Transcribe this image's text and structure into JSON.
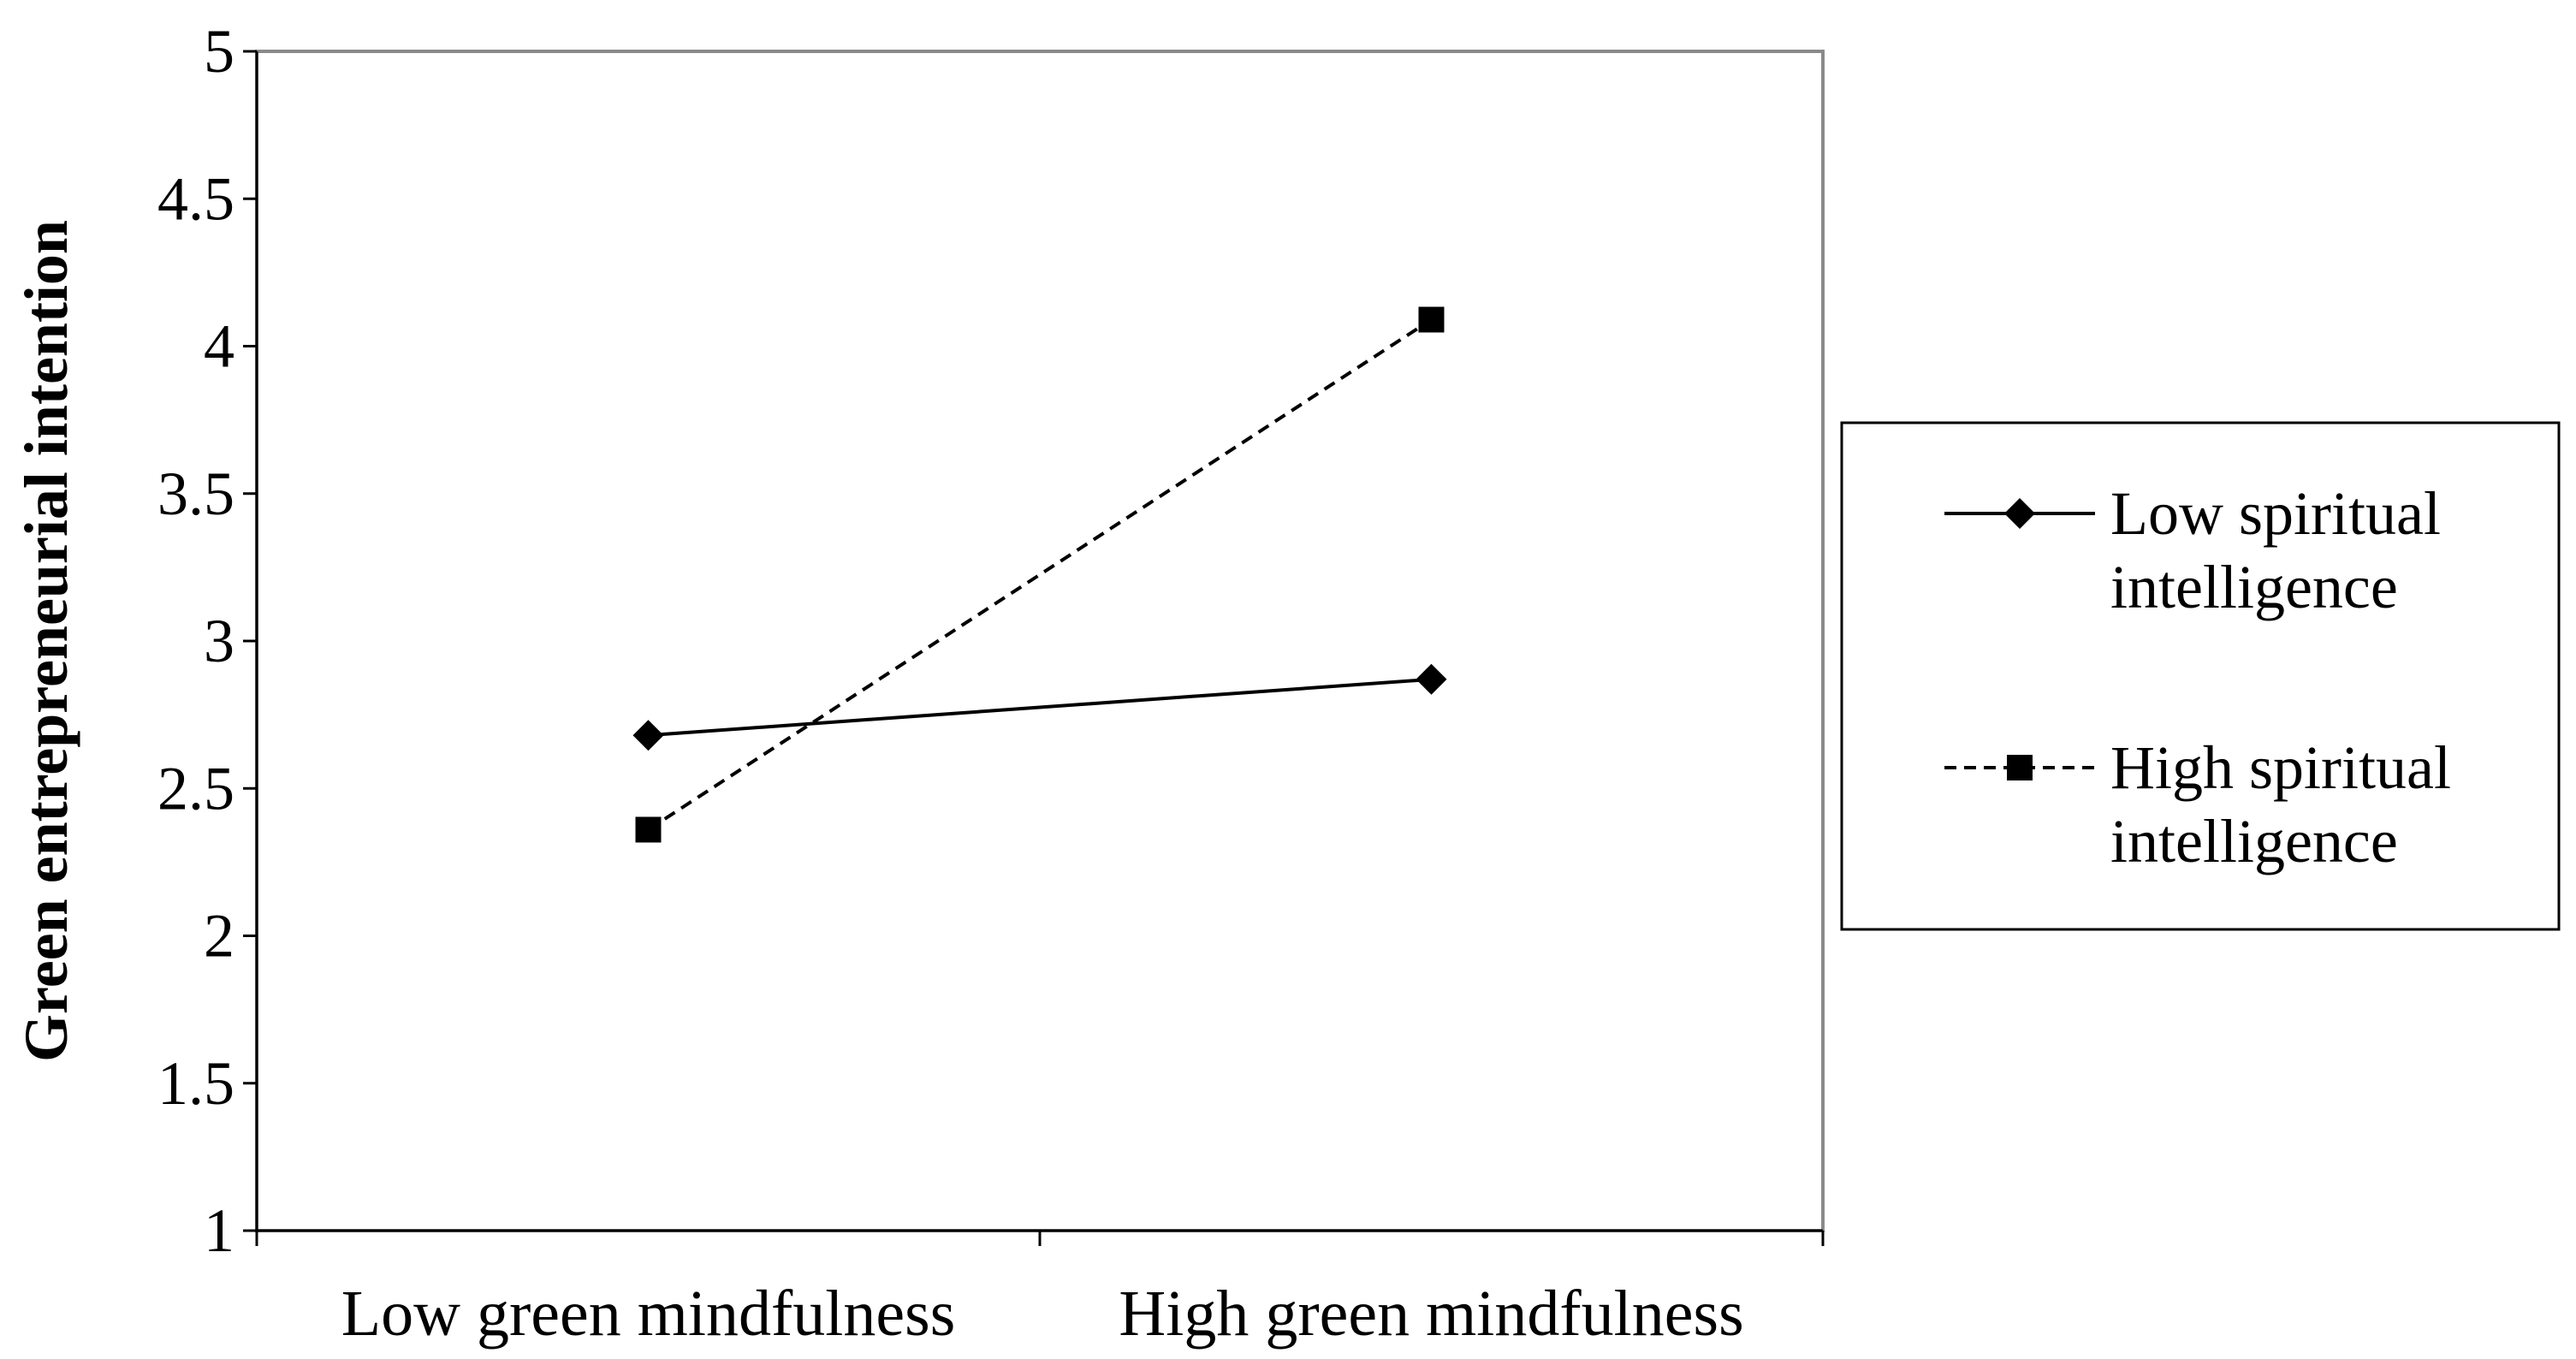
{
  "chart_data": {
    "type": "line",
    "categories": [
      "Low green mindfulness",
      "High green mindfulness"
    ],
    "ylabel": "Green entrepreneurial intention",
    "xlabel": "",
    "ylim": [
      1,
      5
    ],
    "yticks": [
      "1",
      "1.5",
      "2",
      "2.5",
      "3",
      "3.5",
      "4",
      "4.5",
      "5"
    ],
    "grid": false,
    "legend_position": "right",
    "series": [
      {
        "name_lines": [
          "Low spiritual",
          "intelligence"
        ],
        "values": [
          2.68,
          2.87
        ],
        "line_style": "solid",
        "marker": "diamond",
        "color": "#000000"
      },
      {
        "name_lines": [
          "High spiritual",
          "intelligence"
        ],
        "values": [
          2.36,
          4.09
        ],
        "line_style": "dashed",
        "marker": "square",
        "color": "#000000"
      }
    ]
  }
}
